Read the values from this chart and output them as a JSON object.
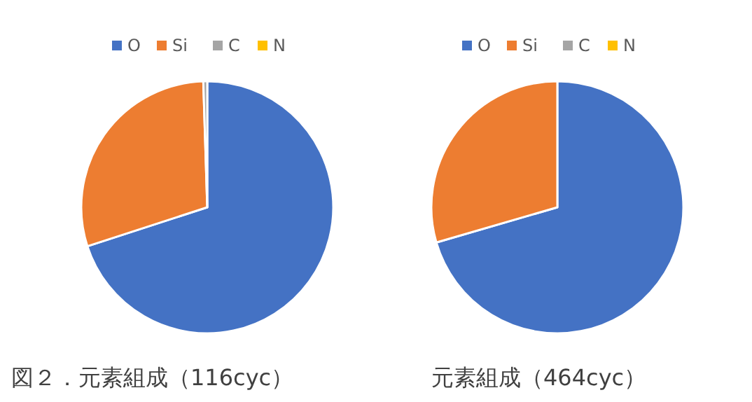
{
  "chart_data": [
    {
      "type": "pie",
      "categories": [
        "O",
        "Si",
        "C",
        "N"
      ],
      "values": [
        70,
        29.5,
        0.5,
        0
      ],
      "colors": [
        "#4472c4",
        "#ed7d31",
        "#a5a5a5",
        "#ffc000"
      ],
      "legend": "top",
      "annotations": [
        "図２．元素組成（116cyc）"
      ]
    },
    {
      "type": "pie",
      "categories": [
        "O",
        "Si",
        "C",
        "N"
      ],
      "values": [
        70.5,
        29.5,
        0,
        0
      ],
      "colors": [
        "#4472c4",
        "#ed7d31",
        "#a5a5a5",
        "#ffc000"
      ],
      "legend": "top",
      "annotations": [
        "元素組成（464cyc）"
      ]
    }
  ]
}
